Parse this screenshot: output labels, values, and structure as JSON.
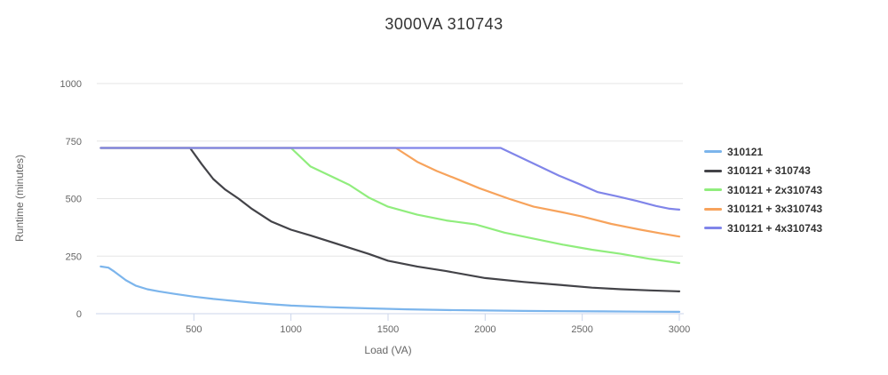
{
  "chart": {
    "title": "3000VA 310743"
  },
  "chart_data": {
    "type": "line",
    "title": "3000VA 310743",
    "xlabel": "Load (VA)",
    "ylabel": "Runtime (minutes)",
    "xlim": [
      0,
      3000
    ],
    "ylim": [
      0,
      1000
    ],
    "x_ticks": [
      "500",
      "1000",
      "1500",
      "2000",
      "2500",
      "3000"
    ],
    "y_ticks": [
      "0",
      "250",
      "500",
      "750",
      "1000"
    ],
    "grid": "horizontal-only",
    "legend_position": "right-middle",
    "runtime_cap_minutes": 720,
    "colors": {
      "axis_line": "#ccd6eb",
      "grid_line": "#e6e6e6",
      "tick_label": "#666666",
      "axis_title": "#666666",
      "chart_title": "#333333",
      "legend_text": "#333333"
    },
    "series": [
      {
        "name": "310121",
        "color": "#7cb5ec",
        "points": [
          [
            20,
            205
          ],
          [
            60,
            200
          ],
          [
            90,
            183
          ],
          [
            150,
            145
          ],
          [
            200,
            122
          ],
          [
            260,
            106
          ],
          [
            320,
            97
          ],
          [
            400,
            86
          ],
          [
            500,
            74
          ],
          [
            600,
            64
          ],
          [
            700,
            56
          ],
          [
            800,
            48
          ],
          [
            900,
            41
          ],
          [
            1000,
            35
          ],
          [
            1200,
            28
          ],
          [
            1400,
            23
          ],
          [
            1600,
            19
          ],
          [
            1800,
            16
          ],
          [
            2000,
            14
          ],
          [
            2200,
            12
          ],
          [
            2400,
            11
          ],
          [
            2600,
            10
          ],
          [
            2800,
            9
          ],
          [
            3000,
            8
          ]
        ]
      },
      {
        "name": "310121 + 310743",
        "color": "#434348",
        "points": [
          [
            20,
            720
          ],
          [
            480,
            720
          ],
          [
            540,
            650
          ],
          [
            600,
            585
          ],
          [
            660,
            540
          ],
          [
            730,
            500
          ],
          [
            800,
            455
          ],
          [
            900,
            400
          ],
          [
            1000,
            365
          ],
          [
            1100,
            340
          ],
          [
            1250,
            300
          ],
          [
            1400,
            260
          ],
          [
            1500,
            230
          ],
          [
            1650,
            205
          ],
          [
            1800,
            185
          ],
          [
            2000,
            155
          ],
          [
            2200,
            138
          ],
          [
            2400,
            124
          ],
          [
            2550,
            113
          ],
          [
            2700,
            106
          ],
          [
            2850,
            101
          ],
          [
            3000,
            97
          ]
        ]
      },
      {
        "name": "310121 + 2x310743",
        "color": "#90ed7d",
        "points": [
          [
            20,
            720
          ],
          [
            1000,
            720
          ],
          [
            1100,
            640
          ],
          [
            1200,
            600
          ],
          [
            1300,
            560
          ],
          [
            1400,
            505
          ],
          [
            1500,
            465
          ],
          [
            1650,
            430
          ],
          [
            1800,
            405
          ],
          [
            1950,
            388
          ],
          [
            2100,
            352
          ],
          [
            2250,
            326
          ],
          [
            2400,
            300
          ],
          [
            2550,
            278
          ],
          [
            2700,
            260
          ],
          [
            2850,
            238
          ],
          [
            3000,
            220
          ]
        ]
      },
      {
        "name": "310121 + 3x310743",
        "color": "#f7a35c",
        "points": [
          [
            20,
            720
          ],
          [
            1540,
            720
          ],
          [
            1650,
            660
          ],
          [
            1750,
            620
          ],
          [
            1870,
            580
          ],
          [
            1970,
            545
          ],
          [
            2120,
            500
          ],
          [
            2250,
            465
          ],
          [
            2400,
            440
          ],
          [
            2500,
            422
          ],
          [
            2650,
            390
          ],
          [
            2800,
            365
          ],
          [
            2900,
            350
          ],
          [
            3000,
            335
          ]
        ]
      },
      {
        "name": "310121 + 4x310743",
        "color": "#8085e9",
        "points": [
          [
            20,
            720
          ],
          [
            2080,
            720
          ],
          [
            2180,
            680
          ],
          [
            2280,
            640
          ],
          [
            2380,
            600
          ],
          [
            2480,
            565
          ],
          [
            2580,
            528
          ],
          [
            2680,
            510
          ],
          [
            2780,
            490
          ],
          [
            2880,
            468
          ],
          [
            2950,
            456
          ],
          [
            3000,
            452
          ]
        ]
      }
    ]
  }
}
